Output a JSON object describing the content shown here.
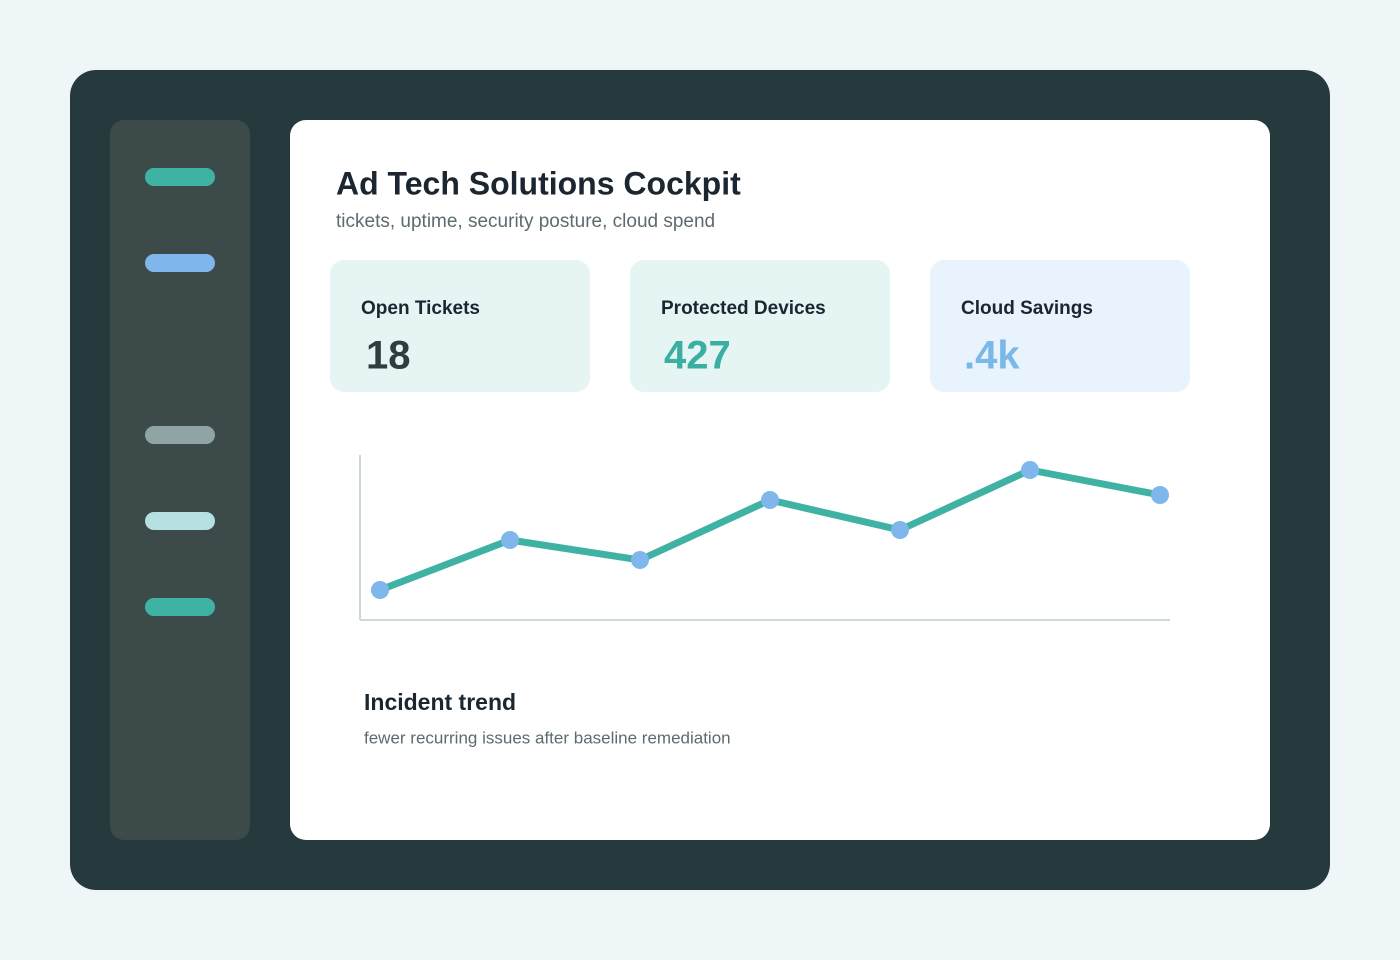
{
  "header": {
    "title": "Ad Tech Solutions Cockpit",
    "subtitle": "tickets, uptime, security posture, cloud spend"
  },
  "cards": [
    {
      "label": "Open Tickets",
      "value": "18"
    },
    {
      "label": "Protected Devices",
      "value": "427"
    },
    {
      "label": "Cloud Savings",
      "value": ".4k"
    }
  ],
  "chart_data": {
    "type": "line",
    "title": "Incident trend",
    "subtitle": "fewer recurring issues after baseline remediation",
    "categories": [
      null,
      null,
      null,
      null,
      null,
      null,
      null
    ],
    "values": [
      30,
      80,
      60,
      120,
      90,
      150,
      125
    ],
    "color": "#40b2a4",
    "marker_color": "#7fb6ec",
    "ylim": [
      0,
      165
    ]
  }
}
